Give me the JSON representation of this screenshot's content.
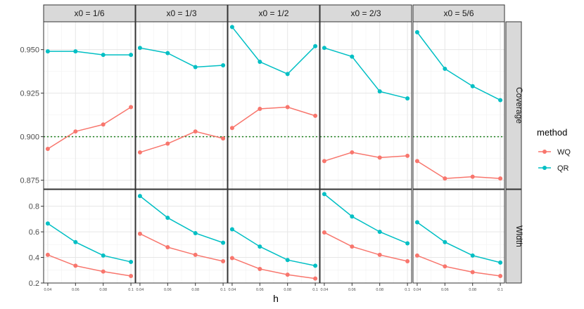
{
  "chart_data": {
    "type": "line",
    "xlabel": "h",
    "x": [
      0.04,
      0.06,
      0.08,
      0.1
    ],
    "x_tick_labels": [
      "0.04",
      "0.06",
      "0.08",
      "0.1"
    ],
    "panel_columns": [
      "x0 = 1/6",
      "x0 = 1/3",
      "x0 = 1/2",
      "x0 = 2/3",
      "x0 = 5/6"
    ],
    "panel_rows": [
      {
        "label": "Coverage",
        "ylim": [
          0.87,
          0.966
        ],
        "y_ticks": [
          0.875,
          0.9,
          0.925,
          0.95
        ],
        "y_tick_labels": [
          "0.875",
          "0.900",
          "0.925",
          "0.950"
        ],
        "reference_line": 0.9,
        "reference_line_color": "#1a7f1a"
      },
      {
        "label": "Width",
        "ylim": [
          0.2,
          0.93
        ],
        "y_ticks": [
          0.2,
          0.4,
          0.6,
          0.8
        ],
        "y_tick_labels": [
          "0.2",
          "0.4",
          "0.6",
          "0.8"
        ]
      }
    ],
    "legend": {
      "title": "method",
      "placement": "right",
      "entries": [
        "WQ",
        "QR"
      ]
    },
    "series_colors": {
      "WQ": "#F8766D",
      "QR": "#00BFC4"
    },
    "grid": true,
    "series": [
      {
        "name": "WQ",
        "metric": "Coverage",
        "panel": "x0 = 1/6",
        "values": [
          0.893,
          0.903,
          0.907,
          0.917
        ]
      },
      {
        "name": "QR",
        "metric": "Coverage",
        "panel": "x0 = 1/6",
        "values": [
          0.949,
          0.949,
          0.947,
          0.947
        ]
      },
      {
        "name": "WQ",
        "metric": "Coverage",
        "panel": "x0 = 1/3",
        "values": [
          0.891,
          0.896,
          0.903,
          0.899
        ]
      },
      {
        "name": "QR",
        "metric": "Coverage",
        "panel": "x0 = 1/3",
        "values": [
          0.951,
          0.948,
          0.94,
          0.941
        ]
      },
      {
        "name": "WQ",
        "metric": "Coverage",
        "panel": "x0 = 1/2",
        "values": [
          0.905,
          0.916,
          0.917,
          0.912
        ]
      },
      {
        "name": "QR",
        "metric": "Coverage",
        "panel": "x0 = 1/2",
        "values": [
          0.963,
          0.943,
          0.936,
          0.952
        ]
      },
      {
        "name": "WQ",
        "metric": "Coverage",
        "panel": "x0 = 2/3",
        "values": [
          0.886,
          0.891,
          0.888,
          0.889
        ]
      },
      {
        "name": "QR",
        "metric": "Coverage",
        "panel": "x0 = 2/3",
        "values": [
          0.951,
          0.946,
          0.926,
          0.922
        ]
      },
      {
        "name": "WQ",
        "metric": "Coverage",
        "panel": "x0 = 5/6",
        "values": [
          0.886,
          0.876,
          0.877,
          0.876
        ]
      },
      {
        "name": "QR",
        "metric": "Coverage",
        "panel": "x0 = 5/6",
        "values": [
          0.96,
          0.939,
          0.929,
          0.921
        ]
      },
      {
        "name": "WQ",
        "metric": "Width",
        "panel": "x0 = 1/6",
        "values": [
          0.42,
          0.335,
          0.29,
          0.255
        ]
      },
      {
        "name": "QR",
        "metric": "Width",
        "panel": "x0 = 1/6",
        "values": [
          0.665,
          0.52,
          0.415,
          0.365
        ]
      },
      {
        "name": "WQ",
        "metric": "Width",
        "panel": "x0 = 1/3",
        "values": [
          0.585,
          0.48,
          0.42,
          0.37
        ]
      },
      {
        "name": "QR",
        "metric": "Width",
        "panel": "x0 = 1/3",
        "values": [
          0.88,
          0.71,
          0.59,
          0.515
        ]
      },
      {
        "name": "WQ",
        "metric": "Width",
        "panel": "x0 = 1/2",
        "values": [
          0.395,
          0.31,
          0.265,
          0.235
        ]
      },
      {
        "name": "QR",
        "metric": "Width",
        "panel": "x0 = 1/2",
        "values": [
          0.62,
          0.485,
          0.38,
          0.335
        ]
      },
      {
        "name": "WQ",
        "metric": "Width",
        "panel": "x0 = 2/3",
        "values": [
          0.595,
          0.485,
          0.42,
          0.37
        ]
      },
      {
        "name": "QR",
        "metric": "Width",
        "panel": "x0 = 2/3",
        "values": [
          0.895,
          0.72,
          0.6,
          0.51
        ]
      },
      {
        "name": "WQ",
        "metric": "Width",
        "panel": "x0 = 5/6",
        "values": [
          0.415,
          0.33,
          0.285,
          0.255
        ]
      },
      {
        "name": "QR",
        "metric": "Width",
        "panel": "x0 = 5/6",
        "values": [
          0.675,
          0.52,
          0.415,
          0.36
        ]
      }
    ]
  }
}
